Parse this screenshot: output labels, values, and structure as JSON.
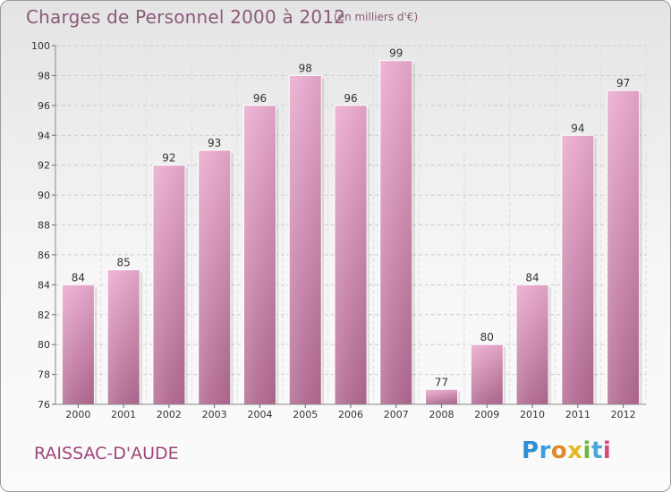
{
  "header": {
    "title": "Charges de Personnel 2000 à 2012",
    "subtitle": "(en milliers d'€)"
  },
  "footer": {
    "commune": "RAISSAC-D'AUDE",
    "brand": "Proxiti"
  },
  "colors": {
    "bar_light": "#e8a8cc",
    "bar_dark": "#b06890",
    "grid": "#cfcfcf",
    "axis_text": "#333333",
    "title": "#8a5a78",
    "commune": "#a0457a"
  },
  "chart_data": {
    "type": "bar",
    "title": "Charges de Personnel 2000 à 2012",
    "subtitle": "(en milliers d'€)",
    "categories": [
      "2000",
      "2001",
      "2002",
      "2003",
      "2004",
      "2005",
      "2006",
      "2007",
      "2008",
      "2009",
      "2010",
      "2011",
      "2012"
    ],
    "values": [
      84,
      85,
      92,
      93,
      96,
      98,
      96,
      99,
      77,
      80,
      84,
      94,
      97
    ],
    "ylim": [
      76,
      100
    ],
    "yticks": [
      76,
      78,
      80,
      82,
      84,
      86,
      88,
      90,
      92,
      94,
      96,
      98,
      100
    ],
    "grid": true,
    "data_labels": true
  }
}
